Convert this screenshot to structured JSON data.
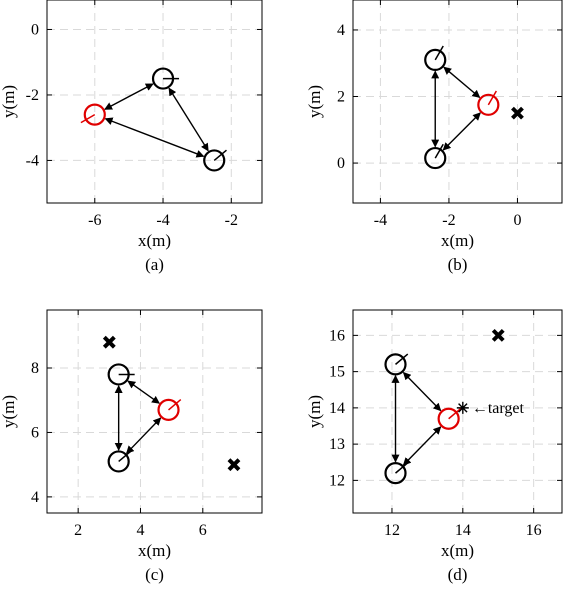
{
  "chart_data": [
    {
      "type": "scatter",
      "caption": "(a)",
      "xlabel": "x(m)",
      "ylabel": "y(m)",
      "xlim": [
        -7.4,
        -1.1
      ],
      "ylim": [
        -5.3,
        0.9
      ],
      "xticks": [
        -6,
        -4,
        -2
      ],
      "yticks": [
        -4,
        -2,
        0
      ],
      "xtick_labels": [
        "-6",
        "-4",
        "-2"
      ],
      "ytick_labels": [
        "-4",
        "-2",
        "0"
      ],
      "grid": true,
      "agents": [
        {
          "x": -4.0,
          "y": -1.5,
          "color": "#000000",
          "heading": 0
        },
        {
          "x": -6.0,
          "y": -2.6,
          "color": "#e00000",
          "heading": 210
        },
        {
          "x": -2.5,
          "y": -4.0,
          "color": "#000000",
          "heading": 40
        }
      ],
      "links": [
        [
          0,
          1
        ],
        [
          1,
          2
        ],
        [
          0,
          2
        ]
      ],
      "obstacles": [],
      "targets": []
    },
    {
      "type": "scatter",
      "caption": "(b)",
      "xlabel": "x(m)",
      "ylabel": "y(m)",
      "xlim": [
        -4.8,
        1.3
      ],
      "ylim": [
        -1.2,
        4.9
      ],
      "xticks": [
        -4,
        -2,
        0
      ],
      "yticks": [
        0,
        2,
        4
      ],
      "xtick_labels": [
        "-4",
        "-2",
        "0"
      ],
      "ytick_labels": [
        "0",
        "2",
        "4"
      ],
      "grid": true,
      "agents": [
        {
          "x": -2.4,
          "y": 3.1,
          "color": "#000000",
          "heading": 60
        },
        {
          "x": -0.85,
          "y": 1.75,
          "color": "#e00000",
          "heading": 60
        },
        {
          "x": -2.4,
          "y": 0.15,
          "color": "#000000",
          "heading": 60
        }
      ],
      "links": [
        [
          0,
          1
        ],
        [
          1,
          2
        ],
        [
          0,
          2
        ]
      ],
      "obstacles": [
        {
          "x": 0.0,
          "y": 1.5
        }
      ],
      "targets": []
    },
    {
      "type": "scatter",
      "caption": "(c)",
      "xlabel": "x(m)",
      "ylabel": "y(m)",
      "xlim": [
        1.0,
        7.9
      ],
      "ylim": [
        3.5,
        9.8
      ],
      "xticks": [
        2,
        4,
        6
      ],
      "yticks": [
        4,
        6,
        8
      ],
      "xtick_labels": [
        "2",
        "4",
        "6"
      ],
      "ytick_labels": [
        "4",
        "6",
        "8"
      ],
      "grid": true,
      "agents": [
        {
          "x": 3.3,
          "y": 7.8,
          "color": "#000000",
          "heading": 0
        },
        {
          "x": 4.9,
          "y": 6.7,
          "color": "#e00000",
          "heading": 40
        },
        {
          "x": 3.3,
          "y": 5.1,
          "color": "#000000",
          "heading": 40
        }
      ],
      "links": [
        [
          0,
          1
        ],
        [
          1,
          2
        ],
        [
          0,
          2
        ]
      ],
      "obstacles": [
        {
          "x": 3.0,
          "y": 8.8
        },
        {
          "x": 7.0,
          "y": 5.0
        }
      ],
      "targets": []
    },
    {
      "type": "scatter",
      "caption": "(d)",
      "xlabel": "x(m)",
      "ylabel": "y(m)",
      "xlim": [
        10.9,
        16.8
      ],
      "ylim": [
        11.1,
        16.7
      ],
      "xticks": [
        12,
        14,
        16
      ],
      "yticks": [
        12,
        13,
        14,
        15,
        16
      ],
      "xtick_labels": [
        "12",
        "14",
        "16"
      ],
      "ytick_labels": [
        "12",
        "13",
        "14",
        "15",
        "16"
      ],
      "grid": true,
      "agents": [
        {
          "x": 12.1,
          "y": 15.2,
          "color": "#000000",
          "heading": 40
        },
        {
          "x": 13.6,
          "y": 13.7,
          "color": "#e00000",
          "heading": 40
        },
        {
          "x": 12.1,
          "y": 12.2,
          "color": "#000000",
          "heading": 40
        }
      ],
      "links": [
        [
          0,
          1
        ],
        [
          1,
          2
        ],
        [
          0,
          2
        ]
      ],
      "obstacles": [
        {
          "x": 15.0,
          "y": 16.0
        }
      ],
      "targets": [
        {
          "x": 14.0,
          "y": 14.0,
          "label": "←target"
        }
      ]
    }
  ]
}
